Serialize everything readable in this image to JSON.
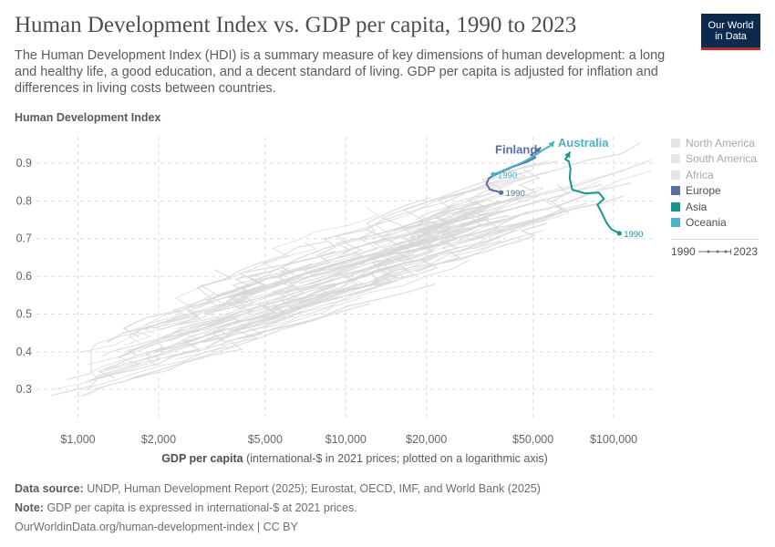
{
  "header": {
    "title": "Human Development Index vs. GDP per capita, 1990 to 2023",
    "subtitle": "The Human Development Index (HDI) is a summary measure of key dimensions of human development: a long and healthy life, a good education, and a decent standard of living. GDP per capita is adjusted for inflation and differences in living costs between countries.",
    "logo_line1": "Our World",
    "logo_line2": "in Data"
  },
  "legend": {
    "items": [
      {
        "label": "North America",
        "color": "#e6e6e6",
        "active": false
      },
      {
        "label": "South America",
        "color": "#e6e6e6",
        "active": false
      },
      {
        "label": "Africa",
        "color": "#e6e6e6",
        "active": false
      },
      {
        "label": "Europe",
        "color": "#5a6fa0",
        "active": true
      },
      {
        "label": "Asia",
        "color": "#17958e",
        "active": true
      },
      {
        "label": "Oceania",
        "color": "#4bb3c4",
        "active": true
      }
    ],
    "time_start": "1990",
    "time_end": "2023"
  },
  "footer": {
    "source_label": "Data source:",
    "source_text": "UNDP, Human Development Report (2025); Eurostat, OECD, IMF, and World Bank (2025)",
    "note_label": "Note:",
    "note_text": "GDP per capita is expressed in international-$ at 2021 prices.",
    "url": "OurWorldinData.org/human-development-index",
    "license": "| CC BY"
  },
  "chart_data": {
    "type": "scatter",
    "ylabel": "Human Development Index",
    "xlabel_bold": "GDP per capita",
    "xlabel_rest": "(international-$ in 2021 prices; plotted on a logarithmic axis)",
    "x_scale": "log",
    "xlim": [
      700,
      140000
    ],
    "ylim": [
      0.24,
      0.97
    ],
    "x_ticks": [
      {
        "value": 1000,
        "label": "$1,000"
      },
      {
        "value": 2000,
        "label": "$2,000"
      },
      {
        "value": 5000,
        "label": "$5,000"
      },
      {
        "value": 10000,
        "label": "$10,000"
      },
      {
        "value": 20000,
        "label": "$20,000"
      },
      {
        "value": 50000,
        "label": "$50,000"
      },
      {
        "value": 100000,
        "label": "$100,000"
      }
    ],
    "y_ticks": [
      {
        "value": 0.3,
        "label": "0.3"
      },
      {
        "value": 0.4,
        "label": "0.4"
      },
      {
        "value": 0.5,
        "label": "0.5"
      },
      {
        "value": 0.6,
        "label": "0.6"
      },
      {
        "value": 0.7,
        "label": "0.7"
      },
      {
        "value": 0.8,
        "label": "0.8"
      },
      {
        "value": 0.9,
        "label": "0.9"
      }
    ],
    "grid": true,
    "legend_position": "right",
    "series": [
      {
        "name": "Finland",
        "region": "Europe",
        "color": "#5a6fa0",
        "start_label": "1990",
        "points": [
          {
            "x": 38000,
            "y": 0.822
          },
          {
            "x": 34500,
            "y": 0.83
          },
          {
            "x": 33500,
            "y": 0.845
          },
          {
            "x": 34200,
            "y": 0.86
          },
          {
            "x": 37500,
            "y": 0.875
          },
          {
            "x": 42000,
            "y": 0.89
          },
          {
            "x": 48000,
            "y": 0.905
          },
          {
            "x": 51000,
            "y": 0.915
          },
          {
            "x": 49000,
            "y": 0.922
          },
          {
            "x": 51500,
            "y": 0.93
          },
          {
            "x": 53500,
            "y": 0.942
          }
        ]
      },
      {
        "name": "Australia",
        "region": "Oceania",
        "color": "#4bb3c4",
        "start_label": "1990",
        "points": [
          {
            "x": 35500,
            "y": 0.87
          },
          {
            "x": 38000,
            "y": 0.878
          },
          {
            "x": 41500,
            "y": 0.89
          },
          {
            "x": 45000,
            "y": 0.9
          },
          {
            "x": 48500,
            "y": 0.912
          },
          {
            "x": 52000,
            "y": 0.925
          },
          {
            "x": 55000,
            "y": 0.937
          },
          {
            "x": 58000,
            "y": 0.946
          },
          {
            "x": 60000,
            "y": 0.958
          }
        ]
      },
      {
        "name": "",
        "region": "Asia",
        "color": "#17958e",
        "start_label": "1990",
        "points": [
          {
            "x": 105000,
            "y": 0.714
          },
          {
            "x": 98000,
            "y": 0.725
          },
          {
            "x": 94000,
            "y": 0.742
          },
          {
            "x": 90000,
            "y": 0.77
          },
          {
            "x": 87000,
            "y": 0.79
          },
          {
            "x": 92000,
            "y": 0.805
          },
          {
            "x": 88000,
            "y": 0.822
          },
          {
            "x": 78000,
            "y": 0.82
          },
          {
            "x": 70000,
            "y": 0.83
          },
          {
            "x": 68500,
            "y": 0.86
          },
          {
            "x": 69000,
            "y": 0.885
          },
          {
            "x": 68000,
            "y": 0.905
          },
          {
            "x": 66000,
            "y": 0.91
          },
          {
            "x": 68800,
            "y": 0.93
          }
        ]
      }
    ]
  }
}
